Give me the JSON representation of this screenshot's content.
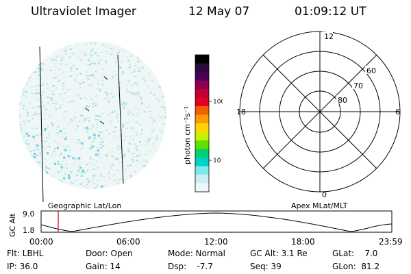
{
  "header": {
    "instrument": "Ultraviolet Imager",
    "date": "12 May 07",
    "time": "01:09:12 UT"
  },
  "colorbar": {
    "label": "photon cm⁻²s⁻¹",
    "ticks": [
      "100",
      "10"
    ],
    "colors": [
      "#000000",
      "#2b0a3d",
      "#4a0055",
      "#8b0052",
      "#c00030",
      "#e0002a",
      "#f06000",
      "#ff9900",
      "#ffd400",
      "#c8f000",
      "#60e000",
      "#00d070",
      "#00d0c8",
      "#80e8e8",
      "#c8f0f0",
      "#eef8f8"
    ]
  },
  "polar_plot": {
    "mlt_labels": {
      "top": "12",
      "left": "18",
      "right": "6",
      "bottom": "0"
    },
    "lat_labels": [
      "60",
      "70",
      "80"
    ]
  },
  "timeline": {
    "left_label": "Geographic Lat/Lon",
    "right_label": "Apex MLat/MLT",
    "y_axis_label": "GC Alt",
    "y_ticks": [
      "9.0",
      "1.8"
    ],
    "x_ticks": [
      "00:00",
      "06:00",
      "12:00",
      "18:00",
      "23:59"
    ],
    "current_time_marker": "01:09"
  },
  "status": {
    "filter": "Flt: LBHL",
    "ip": "IP: 36.0",
    "door": "Door: Open",
    "gain": "Gain: 14",
    "mode": "Mode: Normal",
    "dsp": "Dsp:    -7.7",
    "gc_alt": "GC Alt: 3.1 Re",
    "seq": "Seq: 39",
    "glat": "GLat:    7.0",
    "glon": "GLon:  81.2"
  }
}
